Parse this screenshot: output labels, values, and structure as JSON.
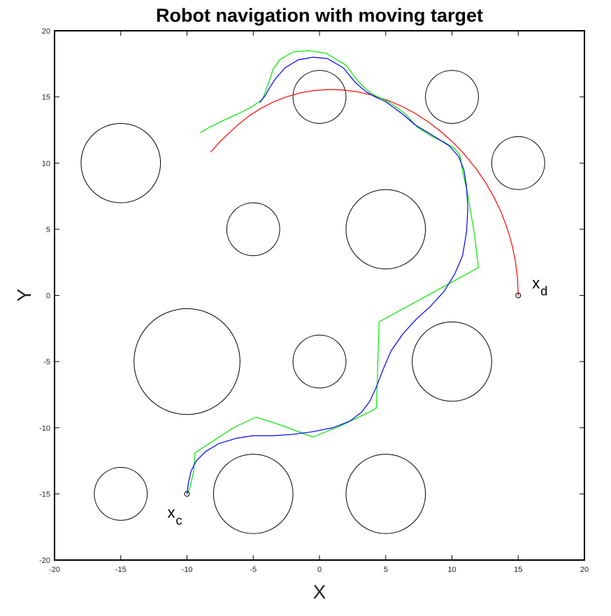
{
  "chart_data": {
    "type": "line",
    "title": "Robot navigation with moving target",
    "xlabel": "X",
    "ylabel": "Y",
    "xlim": [
      -20,
      20
    ],
    "ylim": [
      -20,
      20
    ],
    "xticks": [
      -20,
      -15,
      -10,
      -5,
      0,
      5,
      10,
      15,
      20
    ],
    "yticks": [
      -20,
      -15,
      -10,
      -5,
      0,
      5,
      10,
      15,
      20
    ],
    "xtick_labels": [
      "-20",
      "-15",
      "-10",
      "-5",
      "0",
      "5",
      "10",
      "15",
      "20"
    ],
    "ytick_labels": [
      "-20",
      "-15",
      "-10",
      "-5",
      "0",
      "5",
      "10",
      "15",
      "20"
    ],
    "grid": false,
    "obstacles": [
      {
        "cx": -15,
        "cy": 10,
        "r": 3
      },
      {
        "cx": 0,
        "cy": 15,
        "r": 2
      },
      {
        "cx": 10,
        "cy": 15,
        "r": 2
      },
      {
        "cx": 15,
        "cy": 10,
        "r": 2
      },
      {
        "cx": -5,
        "cy": 5,
        "r": 2
      },
      {
        "cx": 5,
        "cy": 5,
        "r": 3
      },
      {
        "cx": -10,
        "cy": -5,
        "r": 4
      },
      {
        "cx": 0,
        "cy": -5,
        "r": 2
      },
      {
        "cx": 10,
        "cy": -5,
        "r": 3
      },
      {
        "cx": -15,
        "cy": -15,
        "r": 2
      },
      {
        "cx": -5,
        "cy": -15,
        "r": 3
      },
      {
        "cx": 5,
        "cy": -15,
        "r": 3
      }
    ],
    "series": [
      {
        "color": "#ff0000",
        "x": [
          15.0,
          14.95,
          14.79,
          14.53,
          14.17,
          13.72,
          13.17,
          12.53,
          11.81,
          11.02,
          10.16,
          9.24,
          8.26,
          7.25,
          6.19,
          5.11,
          4.01,
          2.91,
          1.8,
          0.7,
          -0.39,
          -1.45,
          -2.49,
          -3.49,
          -4.45,
          -5.36,
          -6.21,
          -7.48,
          -8.2
        ],
        "y": [
          0.0,
          1.3,
          2.58,
          3.84,
          5.08,
          6.27,
          7.43,
          8.54,
          9.59,
          10.57,
          11.49,
          12.32,
          13.08,
          13.74,
          14.3,
          14.76,
          15.12,
          15.38,
          15.52,
          15.56,
          15.49,
          15.3,
          15.01,
          14.62,
          14.12,
          13.53,
          12.85,
          11.65,
          10.84
        ]
      },
      {
        "color": "#00e600",
        "x": [
          -10.0,
          -9.8,
          -9.5,
          -9.4,
          -6.5,
          -4.8,
          -3.2,
          -0.5,
          1.5,
          4.0,
          4.3,
          4.5,
          12.0,
          11.7,
          11.2,
          10.8,
          10.6,
          10.2,
          9.4,
          8.5,
          7.4,
          6.5,
          5.7,
          4.9,
          4.2,
          3.6,
          2.9,
          2.0,
          0.5,
          -0.8,
          -2.0,
          -3.0,
          -3.5,
          -3.8,
          -4.3,
          -5.2,
          -6.2,
          -7.3,
          -8.3,
          -9.0
        ],
        "y": [
          -15.0,
          -14.6,
          -13.3,
          -11.9,
          -10.0,
          -9.2,
          -9.7,
          -10.7,
          -9.9,
          -8.7,
          -8.5,
          -2.0,
          2.1,
          4.6,
          7.6,
          9.4,
          10.6,
          11.1,
          11.6,
          12.0,
          12.7,
          13.7,
          14.3,
          14.8,
          15.1,
          15.5,
          16.2,
          17.4,
          18.3,
          18.5,
          18.4,
          17.8,
          17.1,
          16.2,
          14.8,
          14.2,
          13.7,
          13.2,
          12.7,
          12.3
        ]
      },
      {
        "color": "#0000ff",
        "x": [
          -10.0,
          -9.9,
          -9.7,
          -9.3,
          -8.6,
          -7.6,
          -6.3,
          -5.0,
          -3.5,
          -2.0,
          -0.5,
          1.0,
          2.3,
          3.2,
          3.8,
          4.3,
          4.8,
          5.4,
          6.3,
          7.3,
          8.4,
          9.4,
          10.2,
          10.8,
          11.1,
          11.2,
          11.1,
          10.9,
          10.5,
          9.8,
          9.0,
          8.2,
          7.2,
          6.4,
          5.6,
          4.9,
          4.2,
          3.5,
          2.7,
          1.8,
          0.6,
          -0.5,
          -1.6,
          -2.6,
          -3.3,
          -3.7,
          -4.1,
          -4.5
        ],
        "y": [
          -15.0,
          -14.2,
          -13.3,
          -12.5,
          -11.8,
          -11.2,
          -10.8,
          -10.6,
          -10.6,
          -10.5,
          -10.3,
          -10.0,
          -9.5,
          -8.8,
          -8.0,
          -6.9,
          -5.6,
          -4.2,
          -2.9,
          -1.8,
          -0.8,
          0.3,
          1.6,
          3.0,
          4.8,
          6.6,
          8.2,
          9.5,
          10.5,
          11.3,
          11.8,
          12.3,
          12.9,
          13.6,
          14.2,
          14.7,
          15.0,
          15.4,
          16.1,
          17.2,
          17.9,
          18.0,
          17.8,
          17.2,
          16.4,
          15.8,
          15.1,
          14.6
        ]
      }
    ],
    "points": [
      {
        "x": -10,
        "y": -15,
        "label": "x",
        "subscript": "c"
      },
      {
        "x": 15,
        "y": 0,
        "label": "x",
        "subscript": "d"
      }
    ]
  }
}
